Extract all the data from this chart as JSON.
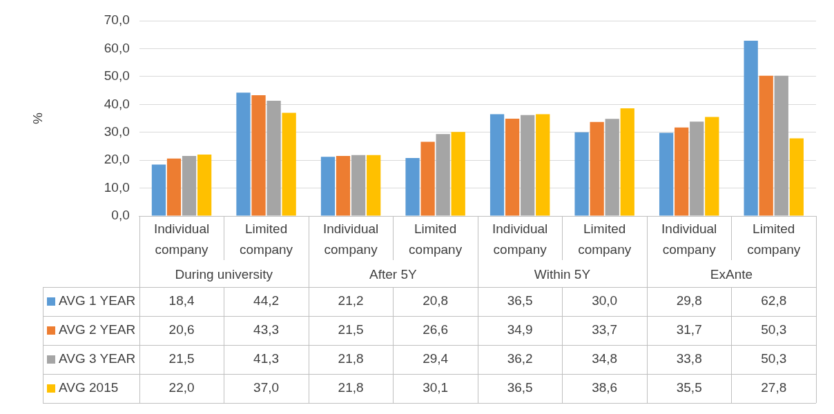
{
  "chart_data": {
    "type": "bar",
    "ylabel": "%",
    "categories": [
      "Individual company",
      "Limited company",
      "Individual company",
      "Limited company",
      "Individual company",
      "Limited company",
      "Individual company",
      "Limited company"
    ],
    "annotations": [
      "During university",
      "After 5Y",
      "Within 5Y",
      "ExAnte"
    ],
    "series": [
      {
        "name": "AVG 1 YEAR",
        "color": "#5b9bd5",
        "values": [
          18.4,
          44.2,
          21.2,
          20.8,
          36.5,
          30.0,
          29.8,
          62.8
        ],
        "value_labels": [
          "18,4",
          "44,2",
          "21,2",
          "20,8",
          "36,5",
          "30,0",
          "29,8",
          "62,8"
        ]
      },
      {
        "name": "AVG 2 YEAR",
        "color": "#ed7d31",
        "values": [
          20.6,
          43.3,
          21.5,
          26.6,
          34.9,
          33.7,
          31.7,
          50.3
        ],
        "value_labels": [
          "20,6",
          "43,3",
          "21,5",
          "26,6",
          "34,9",
          "33,7",
          "31,7",
          "50,3"
        ]
      },
      {
        "name": "AVG 3 YEAR",
        "color": "#a5a5a5",
        "values": [
          21.5,
          41.3,
          21.8,
          29.4,
          36.2,
          34.8,
          33.8,
          50.3
        ],
        "value_labels": [
          "21,5",
          "41,3",
          "21,8",
          "29,4",
          "36,2",
          "34,8",
          "33,8",
          "50,3"
        ]
      },
      {
        "name": "AVG 2015",
        "color": "#ffc000",
        "values": [
          22.0,
          37.0,
          21.8,
          30.1,
          36.5,
          38.6,
          35.5,
          27.8
        ],
        "value_labels": [
          "22,0",
          "37,0",
          "21,8",
          "30,1",
          "36,5",
          "38,6",
          "35,5",
          "27,8"
        ]
      }
    ],
    "ylim": [
      0,
      70
    ],
    "yticks": [
      {
        "value": 0,
        "label": "0,0"
      },
      {
        "value": 10,
        "label": "10,0"
      },
      {
        "value": 20,
        "label": "20,0"
      },
      {
        "value": 30,
        "label": "30,0"
      },
      {
        "value": 40,
        "label": "40,0"
      },
      {
        "value": 50,
        "label": "50,0"
      },
      {
        "value": 60,
        "label": "60,0"
      },
      {
        "value": 70,
        "label": "70,0"
      }
    ],
    "grid": "y",
    "legend": "bottom"
  }
}
